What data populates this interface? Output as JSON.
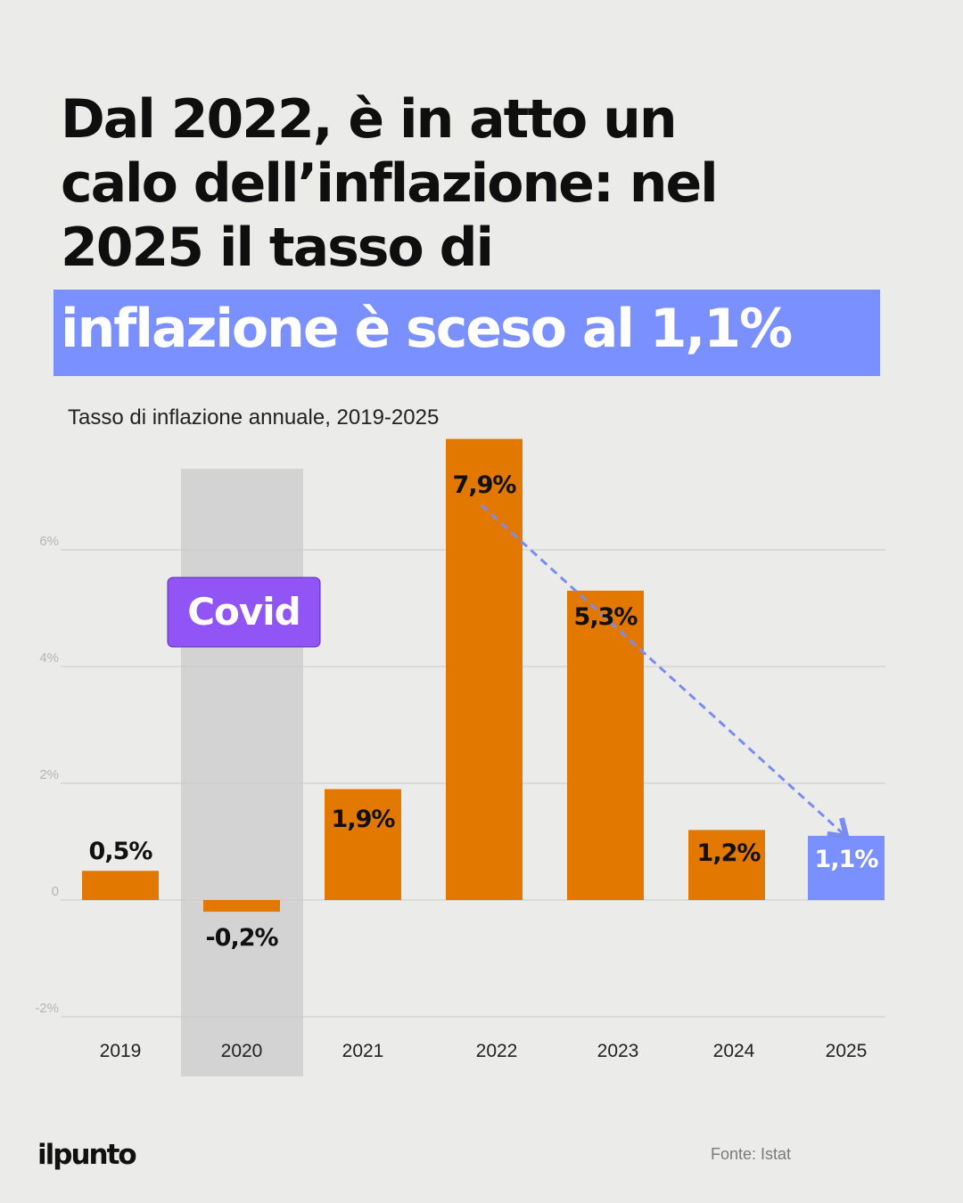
{
  "headline": {
    "lines": [
      "Dal 2022, è in atto un",
      "calo dell’inflazione: nel",
      "2025 il tasso di"
    ],
    "highlight": "inflazione è sceso  al 1,1%"
  },
  "subtitle": "Tasso di inflazione annuale, 2019-2025",
  "logo": "ilpunto",
  "source": "Fonte:  Istat",
  "colors": {
    "background": "#ebebea",
    "bar": "#e37800",
    "highlight_bar": "#7b90ff",
    "covid_band": "#d3d3d3",
    "covid_badge": "#9155f5",
    "trend_arrow": "#7b8cf0",
    "gridline": "#c9c9c9"
  },
  "chart_data": {
    "type": "bar",
    "title": "Tasso di inflazione annuale, 2019-2025",
    "categories": [
      "2019",
      "2020",
      "2021",
      "2022",
      "2023",
      "2024",
      "2025"
    ],
    "values": [
      0.5,
      -0.2,
      1.9,
      7.9,
      5.3,
      1.2,
      1.1
    ],
    "data_labels": [
      "0,5%",
      "-0,2%",
      "1,9%",
      "7,9%",
      "5,3%",
      "1,2%",
      "1,1%"
    ],
    "highlight_category": "2025",
    "y_ticks": [
      6,
      4,
      2,
      0,
      -2
    ],
    "y_tick_labels": [
      "6%",
      "4%",
      "2%",
      "0",
      "-2%"
    ],
    "ylim": [
      -2,
      7.9
    ],
    "grid": true,
    "annotation": {
      "label": "Covid",
      "category": "2020"
    },
    "trend_arrow": {
      "from": "2022",
      "to": "2025"
    }
  }
}
